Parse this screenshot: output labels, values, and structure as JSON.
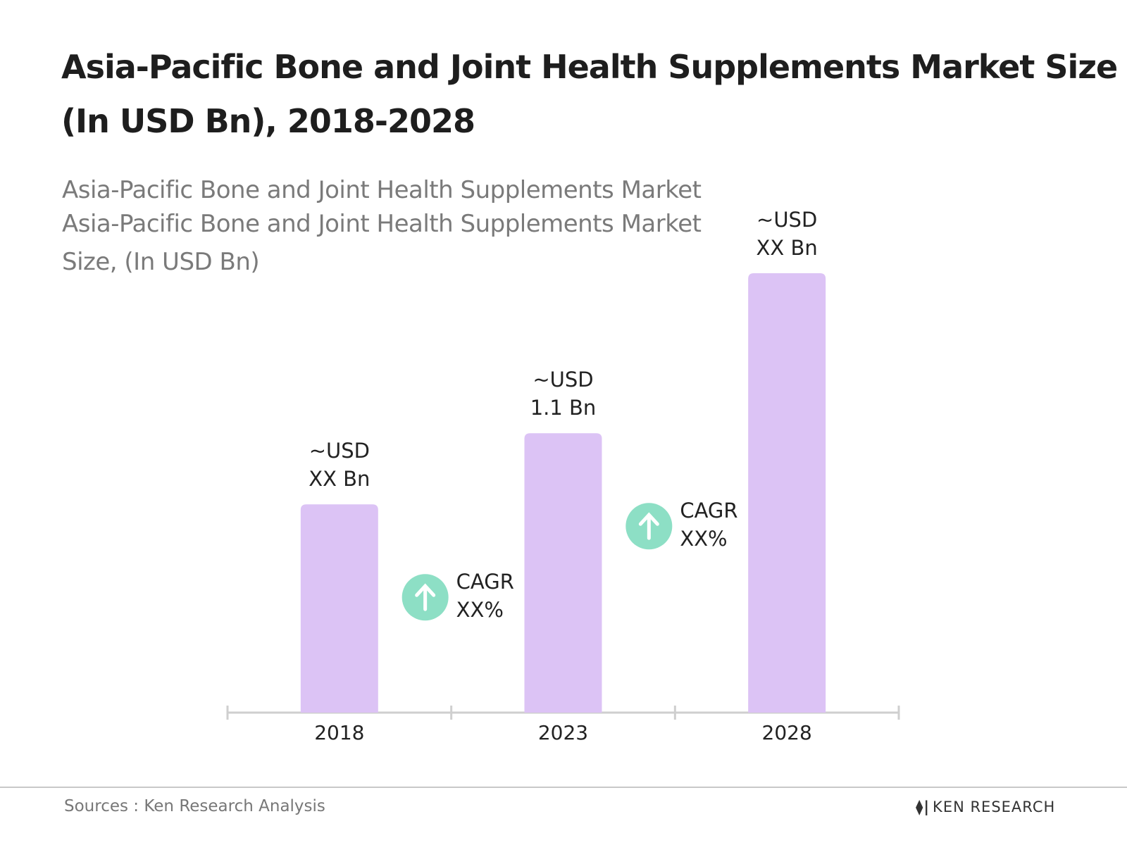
{
  "chart_data": {
    "type": "bar",
    "title": [
      "Asia-Pacific Bone and Joint Health Supplements Market Size",
      "(In USD Bn), 2018-2028"
    ],
    "subtitle": [
      "Asia-Pacific Bone and Joint Health Supplements Market",
      "Asia-Pacific Bone and Joint Health Supplements Market",
      "Size, (In USD Bn)"
    ],
    "categories": [
      "2018",
      "2023",
      "2028"
    ],
    "values": [
      0.82,
      1.1,
      1.73
    ],
    "value_labels": [
      "~USD XX Bn",
      "~USD 1.1 Bn",
      "~USD XX Bn"
    ],
    "color": "#dcc3f5",
    "annotations": [
      "CAGR XX%",
      "CAGR XX%"
    ],
    "annotation_color": "#8ddfc5"
  },
  "footer": {
    "source": "Sources : Ken Research Analysis",
    "logo": "KEN RESEARCH"
  }
}
